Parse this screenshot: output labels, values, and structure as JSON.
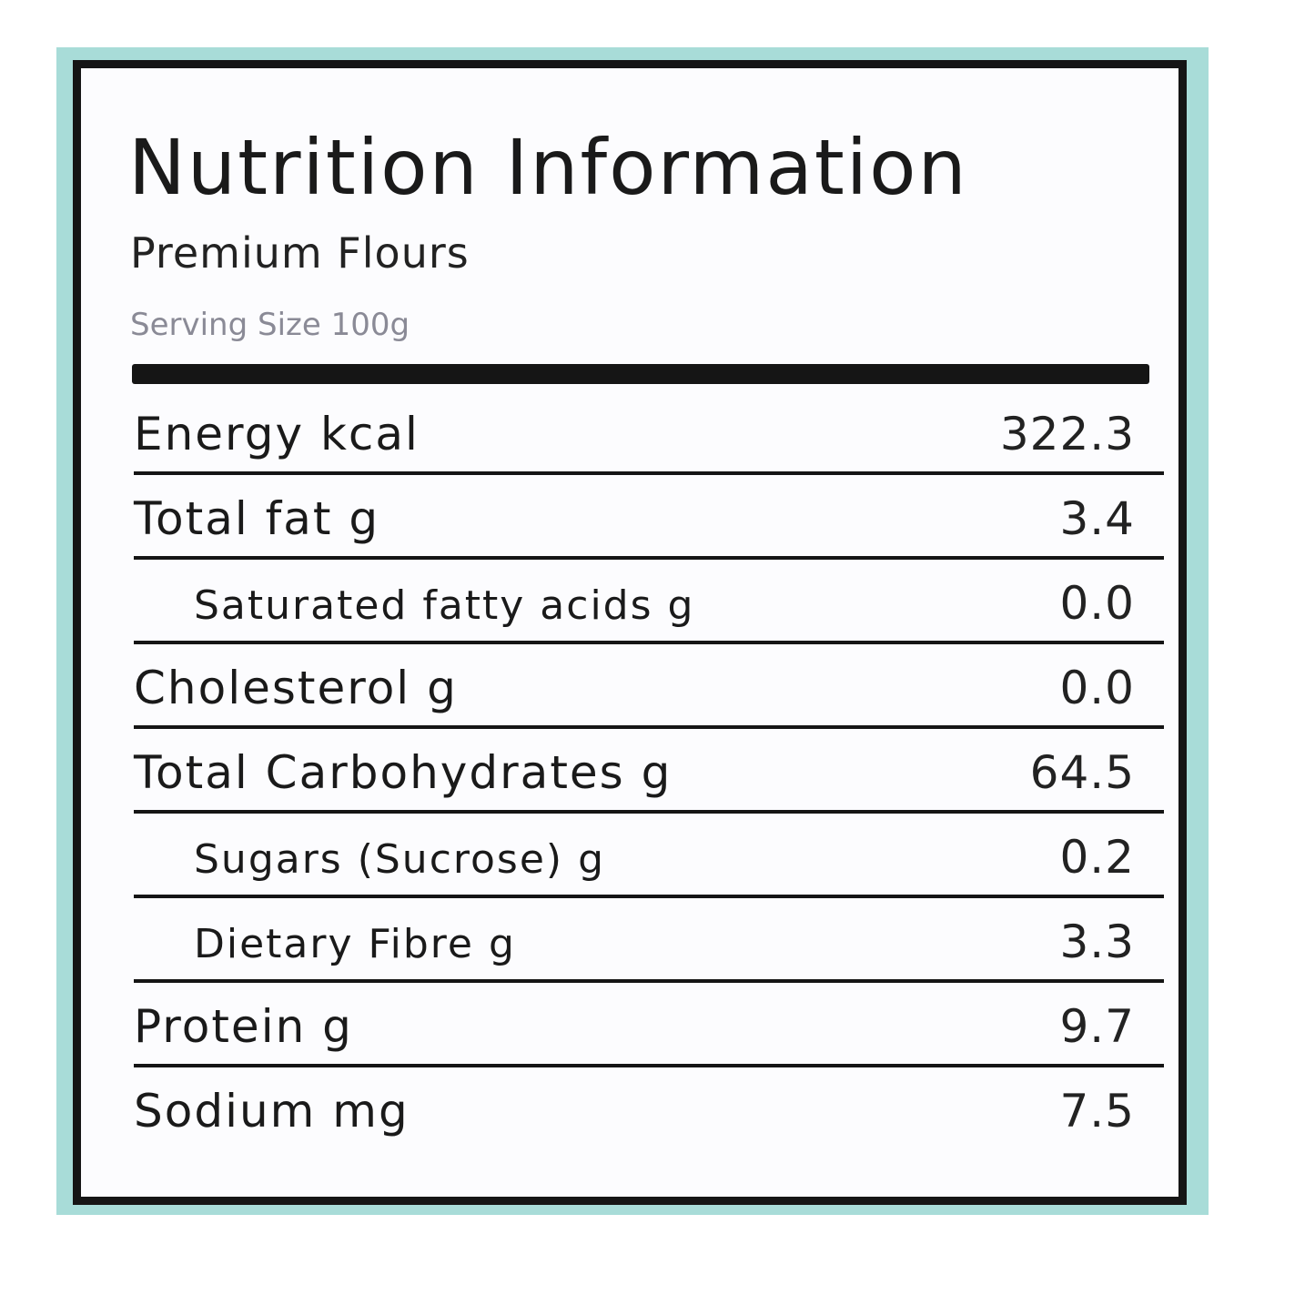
{
  "header": {
    "title": "Nutrition Information",
    "subtitle": "Premium Flours",
    "serving_size": "Serving Size 100g"
  },
  "table": {
    "rows": [
      [
        "Energy kcal",
        "322.3"
      ],
      [
        "Total fat g",
        "3.4"
      ],
      [
        "Saturated fatty acids g",
        "0.0"
      ],
      [
        "Cholesterol g",
        "0.0"
      ],
      [
        "Total Carbohydrates g",
        "64.5"
      ],
      [
        "Sugars (Sucrose) g",
        "0.2"
      ],
      [
        "Dietary Fibre g",
        "3.3"
      ],
      [
        "Protein g",
        "9.7"
      ],
      [
        "Sodium mg",
        "7.5"
      ]
    ]
  }
}
